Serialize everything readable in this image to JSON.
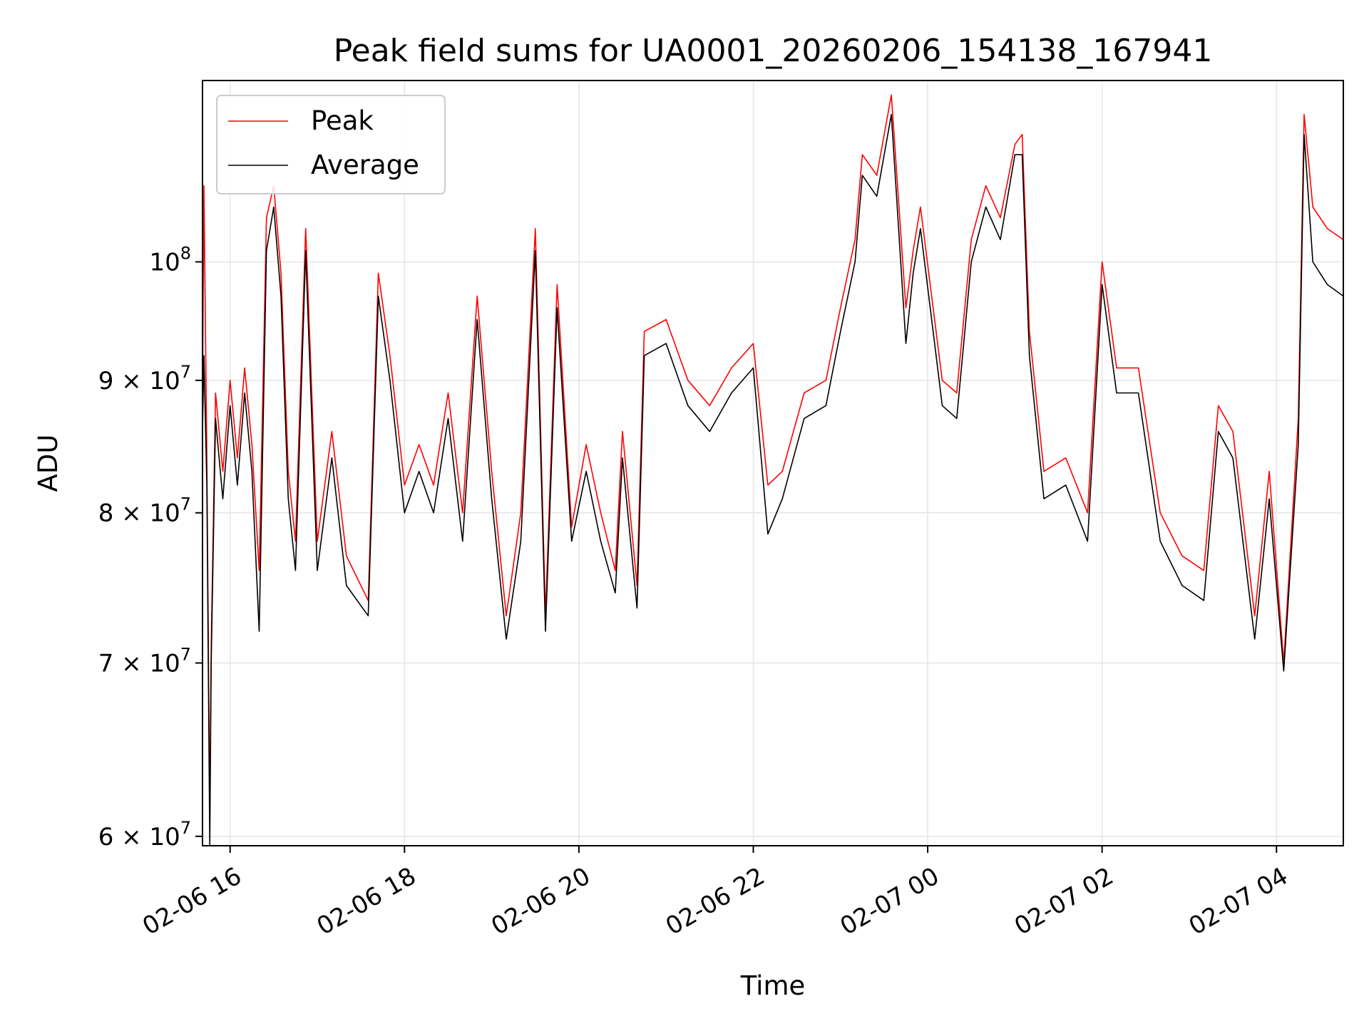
{
  "chart_data": {
    "type": "line",
    "title": "Peak field sums for UA0001_20260206_154138_167941",
    "xlabel": "Time",
    "ylabel": "ADU",
    "y_scale": "log",
    "ylim": [
      59500000,
      117500000
    ],
    "xlim": [
      "2026-02-06 15:41",
      "2026-02-07 04:46"
    ],
    "grid": true,
    "legend_position": "top-left",
    "x_ticks": [
      {
        "t": "2026-02-06 16:00",
        "label": "02-06 16"
      },
      {
        "t": "2026-02-06 18:00",
        "label": "02-06 18"
      },
      {
        "t": "2026-02-06 20:00",
        "label": "02-06 20"
      },
      {
        "t": "2026-02-06 22:00",
        "label": "02-06 22"
      },
      {
        "t": "2026-02-07 00:00",
        "label": "02-07 00"
      },
      {
        "t": "2026-02-07 02:00",
        "label": "02-07 02"
      },
      {
        "t": "2026-02-07 04:00",
        "label": "02-07 04"
      }
    ],
    "y_ticks": [
      {
        "value": 60000000,
        "base": "6 × 10",
        "exp": "7"
      },
      {
        "value": 70000000,
        "base": "7 × 10",
        "exp": "7"
      },
      {
        "value": 80000000,
        "base": "8 × 10",
        "exp": "7"
      },
      {
        "value": 90000000,
        "base": "9 × 10",
        "exp": "7"
      },
      {
        "value": 100000000,
        "base": "10",
        "exp": "8"
      }
    ],
    "series": [
      {
        "name": "Peak",
        "color": "#ff0000",
        "points": [
          [
            "2026-02-06 15:41",
            88000000.0
          ],
          [
            "2026-02-06 15:42",
            107000000.0
          ],
          [
            "2026-02-06 15:44",
            84000000.0
          ],
          [
            "2026-02-06 15:46",
            61000000.0
          ],
          [
            "2026-02-06 15:47",
            71000000.0
          ],
          [
            "2026-02-06 15:50",
            89000000.0
          ],
          [
            "2026-02-06 15:55",
            83000000.0
          ],
          [
            "2026-02-06 16:00",
            90000000.0
          ],
          [
            "2026-02-06 16:05",
            84000000.0
          ],
          [
            "2026-02-06 16:10",
            91000000.0
          ],
          [
            "2026-02-06 16:15",
            85000000.0
          ],
          [
            "2026-02-06 16:20",
            76000000.0
          ],
          [
            "2026-02-06 16:25",
            104000000.0
          ],
          [
            "2026-02-06 16:30",
            107000000.0
          ],
          [
            "2026-02-06 16:35",
            99000000.0
          ],
          [
            "2026-02-06 16:40",
            83000000.0
          ],
          [
            "2026-02-06 16:45",
            78000000.0
          ],
          [
            "2026-02-06 16:52",
            103000000.0
          ],
          [
            "2026-02-06 17:00",
            78000000.0
          ],
          [
            "2026-02-06 17:10",
            86000000.0
          ],
          [
            "2026-02-06 17:20",
            77000000.0
          ],
          [
            "2026-02-06 17:35",
            74000000.0
          ],
          [
            "2026-02-06 17:42",
            99000000.0
          ],
          [
            "2026-02-06 17:50",
            92000000.0
          ],
          [
            "2026-02-06 18:00",
            82000000.0
          ],
          [
            "2026-02-06 18:10",
            85000000.0
          ],
          [
            "2026-02-06 18:20",
            82000000.0
          ],
          [
            "2026-02-06 18:30",
            89000000.0
          ],
          [
            "2026-02-06 18:40",
            80000000.0
          ],
          [
            "2026-02-06 18:50",
            97000000.0
          ],
          [
            "2026-02-06 19:00",
            83000000.0
          ],
          [
            "2026-02-06 19:10",
            73000000.0
          ],
          [
            "2026-02-06 19:20",
            80000000.0
          ],
          [
            "2026-02-06 19:30",
            103000000.0
          ],
          [
            "2026-02-06 19:37",
            73000000.0
          ],
          [
            "2026-02-06 19:45",
            98000000.0
          ],
          [
            "2026-02-06 19:55",
            79000000.0
          ],
          [
            "2026-02-06 20:05",
            85000000.0
          ],
          [
            "2026-02-06 20:15",
            80000000.0
          ],
          [
            "2026-02-06 20:25",
            76000000.0
          ],
          [
            "2026-02-06 20:30",
            86000000.0
          ],
          [
            "2026-02-06 20:40",
            75000000.0
          ],
          [
            "2026-02-06 20:45",
            94000000.0
          ],
          [
            "2026-02-06 21:00",
            95000000.0
          ],
          [
            "2026-02-06 21:15",
            90000000.0
          ],
          [
            "2026-02-06 21:30",
            88000000.0
          ],
          [
            "2026-02-06 21:45",
            91000000.0
          ],
          [
            "2026-02-06 22:00",
            93000000.0
          ],
          [
            "2026-02-06 22:10",
            82000000.0
          ],
          [
            "2026-02-06 22:20",
            83000000.0
          ],
          [
            "2026-02-06 22:35",
            89000000.0
          ],
          [
            "2026-02-06 22:50",
            90000000.0
          ],
          [
            "2026-02-06 23:00",
            96000000.0
          ],
          [
            "2026-02-06 23:10",
            102000000.0
          ],
          [
            "2026-02-06 23:15",
            110000000.0
          ],
          [
            "2026-02-06 23:25",
            108000000.0
          ],
          [
            "2026-02-06 23:35",
            116000000.0
          ],
          [
            "2026-02-06 23:45",
            96000000.0
          ],
          [
            "2026-02-06 23:50",
            101000000.0
          ],
          [
            "2026-02-06 23:55",
            105000000.0
          ],
          [
            "2026-02-07 00:10",
            90000000.0
          ],
          [
            "2026-02-07 00:20",
            89000000.0
          ],
          [
            "2026-02-07 00:30",
            102000000.0
          ],
          [
            "2026-02-07 00:40",
            107000000.0
          ],
          [
            "2026-02-07 00:50",
            104000000.0
          ],
          [
            "2026-02-07 01:00",
            111000000.0
          ],
          [
            "2026-02-07 01:05",
            112000000.0
          ],
          [
            "2026-02-07 01:10",
            94000000.0
          ],
          [
            "2026-02-07 01:20",
            83000000.0
          ],
          [
            "2026-02-07 01:35",
            84000000.0
          ],
          [
            "2026-02-07 01:50",
            80000000.0
          ],
          [
            "2026-02-07 02:00",
            100000000.0
          ],
          [
            "2026-02-07 02:10",
            91000000.0
          ],
          [
            "2026-02-07 02:25",
            91000000.0
          ],
          [
            "2026-02-07 02:40",
            80000000.0
          ],
          [
            "2026-02-07 02:55",
            77000000.0
          ],
          [
            "2026-02-07 03:10",
            76000000.0
          ],
          [
            "2026-02-07 03:20",
            88000000.0
          ],
          [
            "2026-02-07 03:30",
            86000000.0
          ],
          [
            "2026-02-07 03:45",
            73000000.0
          ],
          [
            "2026-02-07 03:55",
            83000000.0
          ],
          [
            "2026-02-07 04:05",
            70000000.0
          ],
          [
            "2026-02-07 04:15",
            87000000.0
          ],
          [
            "2026-02-07 04:19",
            114000000.0
          ],
          [
            "2026-02-07 04:25",
            105000000.0
          ],
          [
            "2026-02-07 04:35",
            103000000.0
          ],
          [
            "2026-02-07 04:46",
            102000000.0
          ]
        ]
      },
      {
        "name": "Average",
        "color": "#000000",
        "points": [
          [
            "2026-02-06 15:41",
            86000000.0
          ],
          [
            "2026-02-06 15:42",
            92000000.0
          ],
          [
            "2026-02-06 15:44",
            82000000.0
          ],
          [
            "2026-02-06 15:46",
            59500000.0
          ],
          [
            "2026-02-06 15:47",
            70000000.0
          ],
          [
            "2026-02-06 15:50",
            87000000.0
          ],
          [
            "2026-02-06 15:55",
            81000000.0
          ],
          [
            "2026-02-06 16:00",
            88000000.0
          ],
          [
            "2026-02-06 16:05",
            82000000.0
          ],
          [
            "2026-02-06 16:10",
            89000000.0
          ],
          [
            "2026-02-06 16:15",
            83000000.0
          ],
          [
            "2026-02-06 16:20",
            72000000.0
          ],
          [
            "2026-02-06 16:25",
            101000000.0
          ],
          [
            "2026-02-06 16:30",
            105000000.0
          ],
          [
            "2026-02-06 16:35",
            97000000.0
          ],
          [
            "2026-02-06 16:40",
            81000000.0
          ],
          [
            "2026-02-06 16:45",
            76000000.0
          ],
          [
            "2026-02-06 16:52",
            101000000.0
          ],
          [
            "2026-02-06 17:00",
            76000000.0
          ],
          [
            "2026-02-06 17:10",
            84000000.0
          ],
          [
            "2026-02-06 17:20",
            75000000.0
          ],
          [
            "2026-02-06 17:35",
            73000000.0
          ],
          [
            "2026-02-06 17:42",
            97000000.0
          ],
          [
            "2026-02-06 17:50",
            90000000.0
          ],
          [
            "2026-02-06 18:00",
            80000000.0
          ],
          [
            "2026-02-06 18:10",
            83000000.0
          ],
          [
            "2026-02-06 18:20",
            80000000.0
          ],
          [
            "2026-02-06 18:30",
            87000000.0
          ],
          [
            "2026-02-06 18:40",
            78000000.0
          ],
          [
            "2026-02-06 18:50",
            95000000.0
          ],
          [
            "2026-02-06 19:00",
            81000000.0
          ],
          [
            "2026-02-06 19:10",
            71500000.0
          ],
          [
            "2026-02-06 19:20",
            78000000.0
          ],
          [
            "2026-02-06 19:30",
            101000000.0
          ],
          [
            "2026-02-06 19:37",
            72000000.0
          ],
          [
            "2026-02-06 19:45",
            96000000.0
          ],
          [
            "2026-02-06 19:55",
            78000000.0
          ],
          [
            "2026-02-06 20:05",
            83000000.0
          ],
          [
            "2026-02-06 20:15",
            78000000.0
          ],
          [
            "2026-02-06 20:25",
            74500000.0
          ],
          [
            "2026-02-06 20:30",
            84000000.0
          ],
          [
            "2026-02-06 20:40",
            73500000.0
          ],
          [
            "2026-02-06 20:45",
            92000000.0
          ],
          [
            "2026-02-06 21:00",
            93000000.0
          ],
          [
            "2026-02-06 21:15",
            88000000.0
          ],
          [
            "2026-02-06 21:30",
            86000000.0
          ],
          [
            "2026-02-06 21:45",
            89000000.0
          ],
          [
            "2026-02-06 22:00",
            91000000.0
          ],
          [
            "2026-02-06 22:10",
            78500000.0
          ],
          [
            "2026-02-06 22:20",
            81000000.0
          ],
          [
            "2026-02-06 22:35",
            87000000.0
          ],
          [
            "2026-02-06 22:50",
            88000000.0
          ],
          [
            "2026-02-06 23:00",
            94000000.0
          ],
          [
            "2026-02-06 23:10",
            100000000.0
          ],
          [
            "2026-02-06 23:15",
            108000000.0
          ],
          [
            "2026-02-06 23:25",
            106000000.0
          ],
          [
            "2026-02-06 23:35",
            114000000.0
          ],
          [
            "2026-02-06 23:45",
            93000000.0
          ],
          [
            "2026-02-06 23:50",
            99000000.0
          ],
          [
            "2026-02-06 23:55",
            103000000.0
          ],
          [
            "2026-02-07 00:10",
            88000000.0
          ],
          [
            "2026-02-07 00:20",
            87000000.0
          ],
          [
            "2026-02-07 00:30",
            100000000.0
          ],
          [
            "2026-02-07 00:40",
            105000000.0
          ],
          [
            "2026-02-07 00:50",
            102000000.0
          ],
          [
            "2026-02-07 01:00",
            110000000.0
          ],
          [
            "2026-02-07 01:05",
            110000000.0
          ],
          [
            "2026-02-07 01:10",
            92000000.0
          ],
          [
            "2026-02-07 01:20",
            81000000.0
          ],
          [
            "2026-02-07 01:35",
            82000000.0
          ],
          [
            "2026-02-07 01:50",
            78000000.0
          ],
          [
            "2026-02-07 02:00",
            98000000.0
          ],
          [
            "2026-02-07 02:10",
            89000000.0
          ],
          [
            "2026-02-07 02:25",
            89000000.0
          ],
          [
            "2026-02-07 02:40",
            78000000.0
          ],
          [
            "2026-02-07 02:55",
            75000000.0
          ],
          [
            "2026-02-07 03:10",
            74000000.0
          ],
          [
            "2026-02-07 03:20",
            86000000.0
          ],
          [
            "2026-02-07 03:30",
            84000000.0
          ],
          [
            "2026-02-07 03:45",
            71500000.0
          ],
          [
            "2026-02-07 03:55",
            81000000.0
          ],
          [
            "2026-02-07 04:05",
            69500000.0
          ],
          [
            "2026-02-07 04:15",
            85000000.0
          ],
          [
            "2026-02-07 04:19",
            112000000.0
          ],
          [
            "2026-02-07 04:25",
            100000000.0
          ],
          [
            "2026-02-07 04:35",
            98000000.0
          ],
          [
            "2026-02-07 04:46",
            97000000.0
          ]
        ]
      }
    ]
  }
}
